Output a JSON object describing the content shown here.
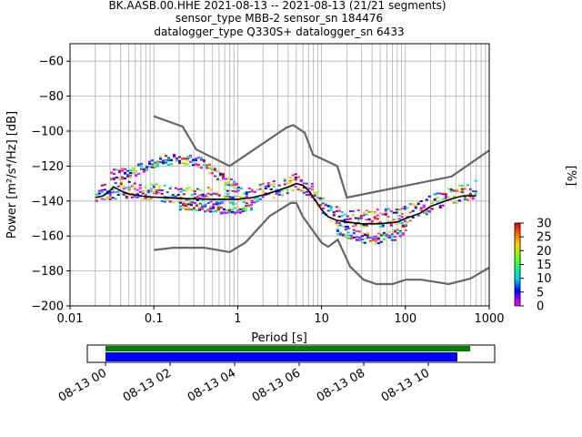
{
  "chart_data": {
    "type": "line",
    "title_lines": [
      "BK.AASB.00.HHE   2021-08-13 -- 2021-08-13  (21/21 segments)",
      "sensor_type MBB-2 sensor_sn 184476",
      "datalogger_type Q330S+ datalogger_sn 6433"
    ],
    "xlabel": "Period [s]",
    "ylabel": "Power [m²/s⁴/Hz] [dB]",
    "xscale": "log",
    "xlim": [
      0.01,
      1000
    ],
    "ylim": [
      -200,
      -50
    ],
    "xticks": [
      0.01,
      0.1,
      1,
      10,
      100,
      1000
    ],
    "xtick_labels": [
      "0.01",
      "0.1",
      "1",
      "10",
      "100",
      "1000"
    ],
    "yticks": [
      -200,
      -180,
      -160,
      -140,
      -120,
      -100,
      -80,
      -60
    ],
    "ytick_labels": [
      "−200",
      "−180",
      "−160",
      "−140",
      "−120",
      "−100",
      "−80",
      "−60"
    ],
    "grid": true,
    "colorbar": {
      "label": "[%]",
      "min": 0,
      "max": 30,
      "ticks": [
        0,
        5,
        10,
        15,
        20,
        25,
        30
      ],
      "tick_labels": [
        "0",
        "5",
        "10",
        "15",
        "20",
        "25",
        "30"
      ]
    },
    "series": [
      {
        "role": "nhnm",
        "color": "#666666",
        "points": [
          [
            0.1,
            -91.5
          ],
          [
            0.22,
            -97.4
          ],
          [
            0.32,
            -110.5
          ],
          [
            0.8,
            -120
          ],
          [
            3.8,
            -98
          ],
          [
            4.6,
            -96.5
          ],
          [
            6.3,
            -101
          ],
          [
            7.9,
            -113.5
          ],
          [
            15.4,
            -120
          ],
          [
            20,
            -138
          ],
          [
            354.8,
            -126
          ],
          [
            1000,
            -111
          ]
        ]
      },
      {
        "role": "nlnm",
        "color": "#666666",
        "points": [
          [
            0.1,
            -168
          ],
          [
            0.17,
            -166.7
          ],
          [
            0.4,
            -166.7
          ],
          [
            0.8,
            -169.2
          ],
          [
            1.24,
            -163.7
          ],
          [
            2.4,
            -148.6
          ],
          [
            4.3,
            -141.1
          ],
          [
            5,
            -141.1
          ],
          [
            6,
            -149
          ],
          [
            10,
            -163.8
          ],
          [
            12,
            -166.2
          ],
          [
            15.6,
            -162.1
          ],
          [
            21.9,
            -177.5
          ],
          [
            31.6,
            -185
          ],
          [
            45,
            -187.5
          ],
          [
            70,
            -187.5
          ],
          [
            101,
            -185
          ],
          [
            154,
            -185
          ],
          [
            328,
            -187.5
          ],
          [
            600,
            -184.4
          ],
          [
            1000,
            -178
          ]
        ]
      },
      {
        "role": "mean",
        "color": "#000000",
        "points": [
          [
            0.02,
            -138
          ],
          [
            0.025,
            -137
          ],
          [
            0.03,
            -134
          ],
          [
            0.033,
            -132
          ],
          [
            0.04,
            -134
          ],
          [
            0.05,
            -136
          ],
          [
            0.08,
            -137.5
          ],
          [
            0.2,
            -138.5
          ],
          [
            0.5,
            -139
          ],
          [
            1,
            -139
          ],
          [
            1.5,
            -138
          ],
          [
            2,
            -136.5
          ],
          [
            3,
            -134
          ],
          [
            4,
            -132
          ],
          [
            5,
            -130
          ],
          [
            6,
            -131
          ],
          [
            7,
            -134
          ],
          [
            8,
            -138
          ],
          [
            10,
            -145
          ],
          [
            12,
            -149
          ],
          [
            15,
            -151
          ],
          [
            20,
            -152
          ],
          [
            30,
            -153
          ],
          [
            50,
            -153
          ],
          [
            80,
            -152
          ],
          [
            100,
            -150
          ],
          [
            150,
            -147
          ],
          [
            200,
            -143
          ],
          [
            300,
            -140
          ],
          [
            400,
            -138
          ],
          [
            500,
            -137
          ],
          [
            700,
            -137
          ]
        ]
      }
    ],
    "heatmap_bands": [
      {
        "x": [
          0.02,
          0.05,
          0.1,
          0.2,
          0.4,
          0.8,
          1.5,
          3,
          5,
          8,
          12,
          20,
          40,
          80,
          150,
          300,
          700
        ],
        "y": [
          -136,
          -133,
          -135,
          -137,
          -137,
          -137,
          -136,
          -133,
          -129,
          -136,
          -147,
          -150,
          -150,
          -149,
          -144,
          -138,
          -133
        ],
        "spread": 5
      },
      {
        "x": [
          0.03,
          0.05,
          0.1,
          0.2,
          0.35,
          0.6,
          1.0
        ],
        "y": [
          -125,
          -124,
          -118,
          -116,
          -118,
          -126,
          -133
        ],
        "spread": 3
      },
      {
        "x": [
          0.2,
          0.4,
          0.8,
          1.5
        ],
        "y": [
          -143,
          -144,
          -146,
          -143
        ],
        "spread": 2
      },
      {
        "x": [
          15,
          25,
          40,
          70,
          100
        ],
        "y": [
          -156,
          -160,
          -162,
          -160,
          -155
        ],
        "spread": 3
      }
    ],
    "date_axis": {
      "tick_labels": [
        "08-13 00",
        "08-13 02",
        "08-13 04",
        "08-13 06",
        "08-13 08",
        "08-13 10"
      ],
      "start_hour": 0,
      "end_hour": 11.3,
      "segments": [
        {
          "color": "#008000",
          "from_hour": 0,
          "to_hour": 11.3
        },
        {
          "color": "#0000ff",
          "from_hour": 0,
          "to_hour": 10.9
        }
      ]
    }
  }
}
